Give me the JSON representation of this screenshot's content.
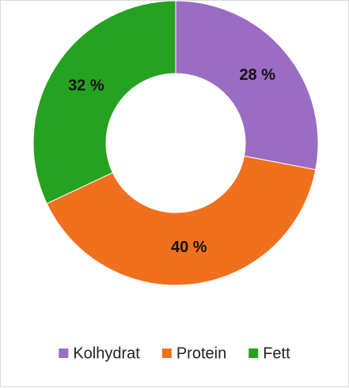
{
  "chart_data": {
    "type": "donut",
    "categories": [
      "Kolhydrat",
      "Protein",
      "Fett"
    ],
    "values": [
      28,
      40,
      32
    ],
    "value_labels": [
      "28 %",
      "40 %",
      "32 %"
    ],
    "colors": [
      "#9a6cc2",
      "#f0701e",
      "#25a21f"
    ],
    "legend": "bottom"
  }
}
